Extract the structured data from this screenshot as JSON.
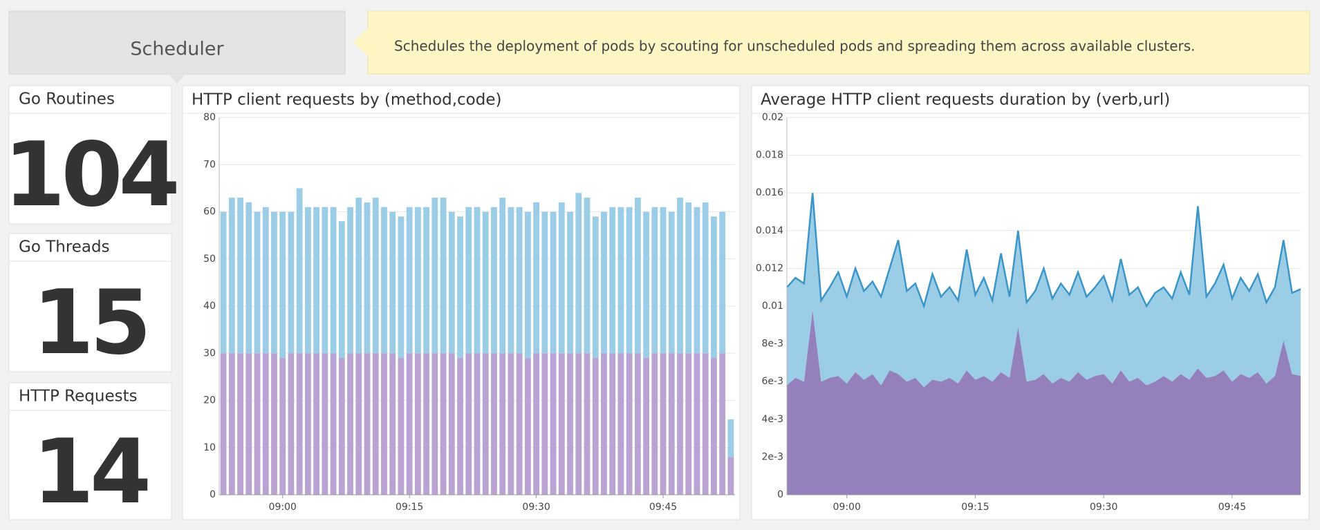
{
  "header": {
    "title": "Scheduler",
    "description": "Schedules the deployment of pods by scouting for unscheduled pods and spreading them across available clusters."
  },
  "stats": [
    {
      "label": "Go Routines",
      "value": 104
    },
    {
      "label": "Go Threads",
      "value": 15
    },
    {
      "label": "HTTP Requests",
      "value": 14
    }
  ],
  "chart_data": [
    {
      "type": "bar",
      "title": "HTTP client requests by (method,code)",
      "stacked": true,
      "grid": true,
      "x": [
        533,
        534,
        535,
        536,
        537,
        538,
        539,
        540,
        541,
        542,
        543,
        544,
        545,
        546,
        547,
        548,
        549,
        550,
        551,
        552,
        553,
        554,
        555,
        556,
        557,
        558,
        559,
        560,
        561,
        562,
        563,
        564,
        565,
        566,
        567,
        568,
        569,
        570,
        571,
        572,
        573,
        574,
        575,
        576,
        577,
        578,
        579,
        580,
        581,
        582,
        583,
        584,
        585,
        586,
        587,
        588,
        589,
        590,
        591,
        592,
        593
      ],
      "xlim": [
        532.5,
        593.5
      ],
      "xticks": [
        {
          "value": 540,
          "label": "09:00"
        },
        {
          "value": 555,
          "label": "09:15"
        },
        {
          "value": 570,
          "label": "09:30"
        },
        {
          "value": 585,
          "label": "09:45"
        }
      ],
      "ylim": [
        0,
        80
      ],
      "yticks": [
        0,
        10,
        20,
        30,
        40,
        50,
        60,
        70,
        80
      ],
      "series": [
        {
          "color": "#b9a3d3",
          "values": [
            30,
            30,
            30,
            30,
            30,
            30,
            30,
            29,
            30,
            30,
            30,
            30,
            30,
            30,
            29,
            30,
            30,
            30,
            30,
            30,
            30,
            29,
            30,
            30,
            30,
            30,
            30,
            30,
            29,
            30,
            30,
            30,
            30,
            30,
            30,
            30,
            29,
            30,
            30,
            30,
            30,
            30,
            30,
            30,
            29,
            30,
            30,
            30,
            30,
            30,
            29,
            30,
            30,
            30,
            30,
            30,
            30,
            30,
            29,
            30,
            8
          ]
        },
        {
          "color": "#9ccde6",
          "values": [
            30,
            33,
            33,
            32,
            30,
            31,
            30,
            31,
            30,
            35,
            31,
            31,
            31,
            31,
            29,
            31,
            33,
            32,
            33,
            31,
            30,
            30,
            31,
            31,
            31,
            33,
            33,
            30,
            30,
            31,
            31,
            30,
            31,
            33,
            31,
            31,
            31,
            32,
            30,
            30,
            32,
            30,
            34,
            33,
            30,
            30,
            31,
            31,
            31,
            33,
            31,
            31,
            31,
            30,
            33,
            32,
            31,
            32,
            30,
            30,
            8
          ]
        }
      ]
    },
    {
      "type": "area",
      "title": "Average HTTP client requests duration by (verb,url)",
      "stacked": true,
      "grid": true,
      "x": [
        533,
        534,
        535,
        536,
        537,
        538,
        539,
        540,
        541,
        542,
        543,
        544,
        545,
        546,
        547,
        548,
        549,
        550,
        551,
        552,
        553,
        554,
        555,
        556,
        557,
        558,
        559,
        560,
        561,
        562,
        563,
        564,
        565,
        566,
        567,
        568,
        569,
        570,
        571,
        572,
        573,
        574,
        575,
        576,
        577,
        578,
        579,
        580,
        581,
        582,
        583,
        584,
        585,
        586,
        587,
        588,
        589,
        590,
        591,
        592,
        593
      ],
      "xlim": [
        533,
        593
      ],
      "xticks": [
        {
          "value": 540,
          "label": "09:00"
        },
        {
          "value": 555,
          "label": "09:15"
        },
        {
          "value": 570,
          "label": "09:30"
        },
        {
          "value": 585,
          "label": "09:45"
        }
      ],
      "ylim": [
        0,
        0.02
      ],
      "yticks": [
        0,
        {
          "value": 0.002,
          "label": "2e-3"
        },
        {
          "value": 0.004,
          "label": "4e-3"
        },
        {
          "value": 0.006,
          "label": "6e-3"
        },
        {
          "value": 0.008,
          "label": "8e-3"
        },
        0.01,
        0.012,
        0.014,
        0.016,
        0.018,
        0.02
      ],
      "series": [
        {
          "color": "#9480bb",
          "values": [
            0.0058,
            0.0062,
            0.006,
            0.0098,
            0.006,
            0.0062,
            0.0063,
            0.0059,
            0.0065,
            0.0061,
            0.0064,
            0.0058,
            0.0066,
            0.0064,
            0.006,
            0.0062,
            0.0057,
            0.0061,
            0.006,
            0.0062,
            0.0059,
            0.0066,
            0.0061,
            0.0063,
            0.006,
            0.0065,
            0.0062,
            0.0089,
            0.006,
            0.0061,
            0.0064,
            0.0059,
            0.0062,
            0.006,
            0.0065,
            0.0061,
            0.0063,
            0.0064,
            0.0059,
            0.0066,
            0.006,
            0.0062,
            0.0058,
            0.006,
            0.0063,
            0.006,
            0.0064,
            0.0061,
            0.0067,
            0.0062,
            0.0063,
            0.0066,
            0.006,
            0.0064,
            0.0062,
            0.0065,
            0.0059,
            0.0063,
            0.0082,
            0.0064,
            0.0063
          ]
        },
        {
          "color": "#9ccde6",
          "line_color": "#3a95c8",
          "values": [
            0.0052,
            0.0053,
            0.0052,
            0.0062,
            0.0043,
            0.0048,
            0.0055,
            0.0046,
            0.0055,
            0.0047,
            0.0049,
            0.0047,
            0.0054,
            0.0071,
            0.0048,
            0.005,
            0.0043,
            0.0056,
            0.0045,
            0.0048,
            0.0044,
            0.0064,
            0.0045,
            0.0052,
            0.0043,
            0.0063,
            0.0043,
            0.0051,
            0.0042,
            0.0047,
            0.0056,
            0.0045,
            0.005,
            0.0046,
            0.0053,
            0.0044,
            0.0047,
            0.0052,
            0.0044,
            0.0059,
            0.0046,
            0.0048,
            0.0042,
            0.0047,
            0.0047,
            0.0044,
            0.0054,
            0.0045,
            0.0086,
            0.0043,
            0.0049,
            0.0056,
            0.0044,
            0.0051,
            0.0046,
            0.0052,
            0.0043,
            0.0047,
            0.0053,
            0.0043,
            0.0046
          ]
        }
      ]
    }
  ]
}
